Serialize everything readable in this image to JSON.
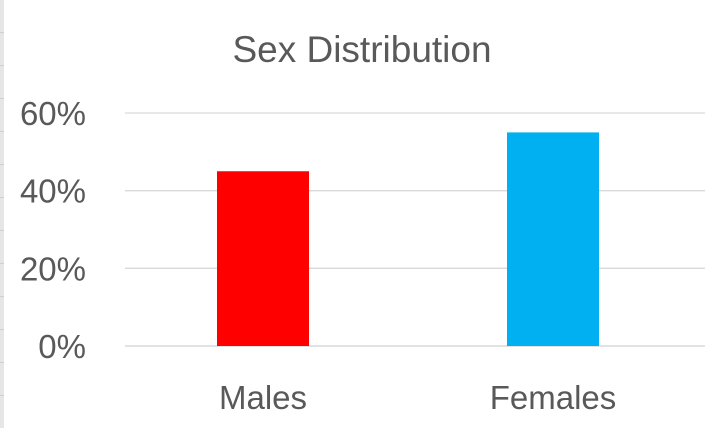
{
  "chart_data": {
    "type": "bar",
    "title": "Sex Distribution",
    "xlabel": "",
    "ylabel": "",
    "categories": [
      "Males",
      "Females"
    ],
    "values": [
      0.45,
      0.55
    ],
    "bar_colors": [
      "#ff0000",
      "#00b0f0"
    ],
    "ylim": [
      0,
      0.6
    ],
    "yticks": [
      0,
      0.2,
      0.4,
      0.6
    ],
    "ytick_labels": [
      "0%",
      "20%",
      "40%",
      "60%"
    ],
    "grid": true,
    "legend": "none"
  }
}
